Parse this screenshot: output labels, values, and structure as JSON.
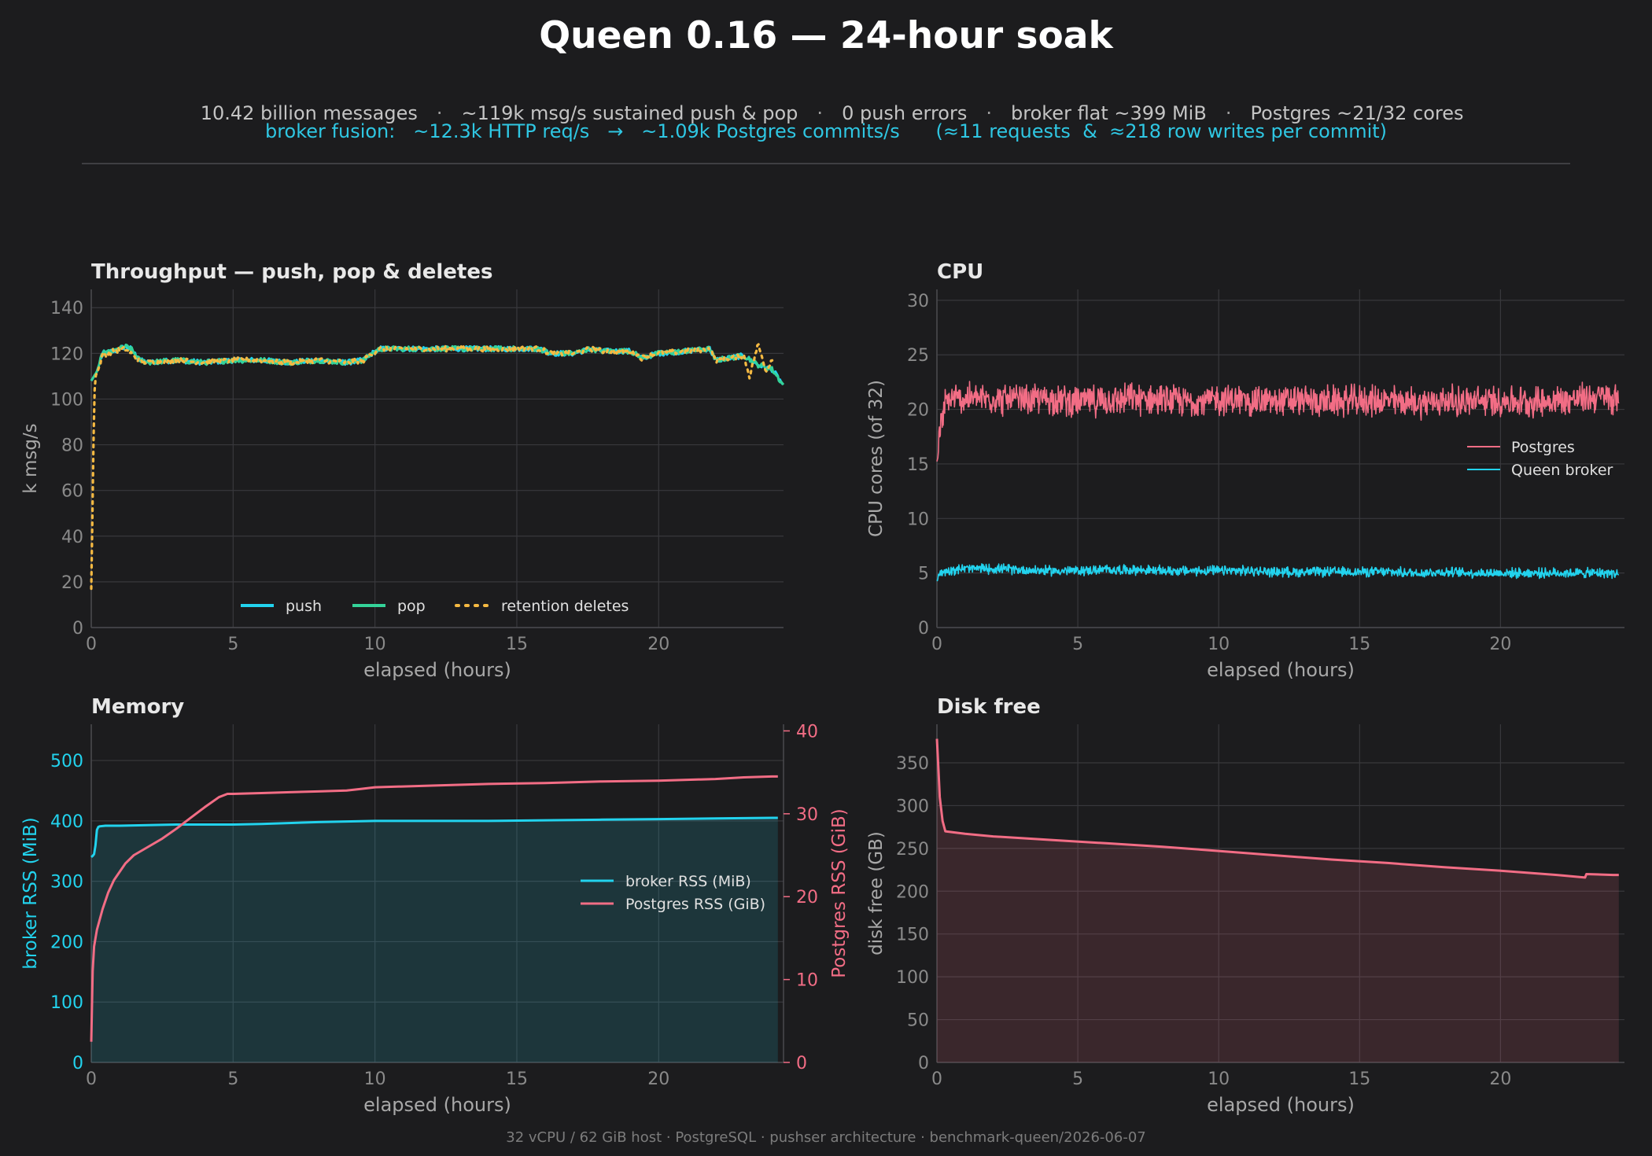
{
  "title": "Queen 0.16 — 24-hour soak",
  "stats": [
    "10.42 billion messages",
    "~119k msg/s sustained push & pop",
    "0 push errors",
    "broker flat ~399 MiB",
    "Postgres ~21/32 cores"
  ],
  "stats_separator": "·",
  "fusion": {
    "label": "broker fusion:",
    "http": "~12.3k HTTP req/s",
    "arrow": "→",
    "commits": "~1.09k Postgres commits/s",
    "ratio": "(≈11 requests  &  ≈218 row writes per commit)"
  },
  "footer": "32 vCPU / 62 GiB host · PostgreSQL · pushser architecture · benchmark-queen/2026-06-07",
  "colors": {
    "background": "#1c1c1e",
    "cyan": "#22d3ee",
    "green": "#34d399",
    "amber": "#f5b942",
    "pink": "#f26d85",
    "grid": "#38383c",
    "tick": "#8a8a8a",
    "axis_label": "#a8a8a8"
  },
  "chart_data": [
    {
      "id": "throughput",
      "type": "line",
      "title": "Throughput — push, pop & deletes",
      "xlabel": "elapsed (hours)",
      "ylabel": "k msg/s",
      "xlim": [
        0,
        24.4
      ],
      "ylim": [
        0,
        148
      ],
      "xticks": [
        0,
        5,
        10,
        15,
        20
      ],
      "yticks": [
        0,
        20,
        40,
        60,
        80,
        100,
        120,
        140
      ],
      "grid": true,
      "legend": {
        "placement": "bottom-center",
        "entries": [
          "push",
          "pop",
          "retention deletes"
        ]
      },
      "series": [
        {
          "name": "push",
          "color": "#22d3ee",
          "style": "solid",
          "x": [
            0,
            0.2,
            0.4,
            0.8,
            1.2,
            1.4,
            1.7,
            2.0,
            3.0,
            4.0,
            5.0,
            6.0,
            7.0,
            8.0,
            9.0,
            9.6,
            9.9,
            10.2,
            11.0,
            12.0,
            13.0,
            14.0,
            15.0,
            15.8,
            16.2,
            17.0,
            17.6,
            18.0,
            19.0,
            19.4,
            20.0,
            21.0,
            21.8,
            22.0,
            23.0,
            23.5,
            24.0,
            24.4
          ],
          "y": [
            108,
            112,
            120,
            121,
            123,
            122,
            117,
            116,
            117,
            116,
            117,
            117,
            116,
            117,
            116,
            117,
            120,
            122,
            122,
            122,
            122,
            122,
            122,
            122,
            120,
            120,
            122,
            121,
            121,
            118,
            120,
            121,
            122,
            117,
            119,
            115,
            113,
            106
          ]
        },
        {
          "name": "pop",
          "color": "#34d399",
          "style": "solid",
          "x": [
            0,
            0.2,
            0.4,
            0.8,
            1.2,
            1.4,
            1.7,
            2.0,
            3.0,
            4.0,
            5.0,
            6.0,
            7.0,
            8.0,
            9.0,
            9.6,
            9.9,
            10.2,
            11.0,
            12.0,
            13.0,
            14.0,
            15.0,
            15.8,
            16.2,
            17.0,
            17.6,
            18.0,
            19.0,
            19.4,
            20.0,
            21.0,
            21.8,
            22.0,
            23.0,
            23.5,
            24.0,
            24.4
          ],
          "y": [
            108,
            112,
            120,
            121,
            123,
            122,
            117,
            116,
            117,
            116,
            117,
            117,
            116,
            117,
            116,
            117,
            120,
            122,
            122,
            122,
            122,
            122,
            122,
            122,
            120,
            120,
            122,
            121,
            121,
            118,
            120,
            121,
            122,
            117,
            119,
            115,
            113,
            106
          ]
        },
        {
          "name": "retention deletes",
          "color": "#f5b942",
          "style": "dotted",
          "x": [
            0,
            0.05,
            0.1,
            0.15,
            0.25,
            0.4,
            0.8,
            1.2,
            1.7,
            2.0,
            3.0,
            4.0,
            5.0,
            6.0,
            7.0,
            8.0,
            9.0,
            9.6,
            9.9,
            10.2,
            11.0,
            12.0,
            13.0,
            14.0,
            15.0,
            15.8,
            16.2,
            17.0,
            17.6,
            18.0,
            19.0,
            19.4,
            20.0,
            21.0,
            21.8,
            22.0,
            23.0,
            23.2,
            23.5,
            23.8,
            24.0
          ],
          "y": [
            17,
            55,
            100,
            110,
            113,
            119,
            121,
            122,
            117,
            116,
            117,
            116,
            117,
            117,
            116,
            117,
            116,
            117,
            120,
            122,
            122,
            122,
            122,
            122,
            122,
            122,
            120,
            120,
            122,
            121,
            121,
            118,
            120,
            121,
            122,
            117,
            119,
            110,
            124,
            112,
            118
          ]
        }
      ]
    },
    {
      "id": "cpu",
      "type": "line",
      "title": "CPU",
      "xlabel": "elapsed (hours)",
      "ylabel": "CPU cores (of 32)",
      "xlim": [
        0,
        24.4
      ],
      "ylim": [
        0,
        31
      ],
      "xticks": [
        0,
        5,
        10,
        15,
        20
      ],
      "yticks": [
        0,
        5,
        10,
        15,
        20,
        25,
        30
      ],
      "grid": true,
      "legend": {
        "placement": "right",
        "entries": [
          "Postgres",
          "Queen broker"
        ]
      },
      "series": [
        {
          "name": "Postgres",
          "color": "#f26d85",
          "style": "solid",
          "x": [
            0,
            0.1,
            0.3,
            0.6,
            1,
            2,
            3,
            4,
            5,
            6,
            7,
            8,
            9,
            10,
            11,
            12,
            13,
            14,
            15,
            16,
            17,
            18,
            19,
            20,
            21,
            22,
            23,
            23.5,
            24.0,
            24.2
          ],
          "y": [
            15,
            18,
            20.5,
            21,
            21,
            21,
            20.8,
            21,
            20.7,
            20.8,
            21,
            20.8,
            20.7,
            20.9,
            20.8,
            20.7,
            20.8,
            20.7,
            20.8,
            20.8,
            20.6,
            20.8,
            20.7,
            20.8,
            20.7,
            20.8,
            21,
            21.2,
            21,
            20.5
          ],
          "noise_amplitude": 1.4
        },
        {
          "name": "Queen broker",
          "color": "#22d3ee",
          "style": "solid",
          "x": [
            0,
            0.1,
            0.5,
            1,
            2,
            3,
            4,
            5,
            6,
            7,
            8,
            9,
            10,
            11,
            12,
            13,
            14,
            15,
            16,
            17,
            18,
            19,
            20,
            21,
            22,
            23,
            24,
            24.2
          ],
          "y": [
            4.6,
            5.0,
            5.3,
            5.4,
            5.4,
            5.3,
            5.2,
            5.2,
            5.3,
            5.3,
            5.2,
            5.2,
            5.2,
            5.2,
            5.1,
            5.1,
            5.1,
            5.1,
            5.1,
            5.0,
            5.1,
            5.0,
            5.0,
            5.0,
            5.0,
            5.0,
            5.0,
            4.9
          ],
          "noise_amplitude": 0.45
        }
      ]
    },
    {
      "id": "memory",
      "type": "area",
      "title": "Memory",
      "xlabel": "elapsed (hours)",
      "ylabel": "broker RSS (MiB)",
      "ylabel_right": "Postgres RSS (GiB)",
      "xlim": [
        0,
        24.4
      ],
      "ylim": [
        0,
        560
      ],
      "ylim_right": [
        0,
        40.8
      ],
      "xticks": [
        0,
        5,
        10,
        15,
        20
      ],
      "yticks": [
        0,
        100,
        200,
        300,
        400,
        500
      ],
      "yticks_right": [
        0,
        10,
        20,
        30,
        40
      ],
      "grid": true,
      "legend": {
        "placement": "right",
        "entries": [
          "broker RSS (MiB)",
          "Postgres RSS (GiB)"
        ]
      },
      "series": [
        {
          "name": "broker RSS (MiB)",
          "color": "#22d3ee",
          "axis": "left",
          "x": [
            0,
            0.05,
            0.1,
            0.15,
            0.2,
            0.25,
            0.3,
            0.5,
            1,
            2,
            3,
            4,
            5,
            6,
            8,
            10,
            12,
            14,
            16,
            18,
            20,
            22,
            24,
            24.2
          ],
          "y": [
            340,
            342,
            345,
            360,
            385,
            390,
            391,
            392,
            392,
            393,
            394,
            394,
            394,
            395,
            398,
            400,
            400,
            400,
            401,
            402,
            403,
            404,
            405,
            405
          ]
        },
        {
          "name": "Postgres RSS (GiB)",
          "color": "#f26d85",
          "axis": "right",
          "x": [
            0,
            0.05,
            0.1,
            0.2,
            0.4,
            0.6,
            0.8,
            1.0,
            1.2,
            1.5,
            2,
            2.5,
            3,
            3.5,
            4,
            4.5,
            4.8,
            5,
            6,
            7,
            8,
            9,
            9.5,
            10,
            12,
            14,
            16,
            18,
            20,
            22,
            23,
            24,
            24.2
          ],
          "y": [
            2.5,
            11,
            14,
            16,
            18.5,
            20.5,
            22,
            23,
            24,
            25,
            26,
            27,
            28.2,
            29.5,
            30.8,
            32,
            32.4,
            32.4,
            32.5,
            32.6,
            32.7,
            32.8,
            33.0,
            33.2,
            33.4,
            33.6,
            33.7,
            33.9,
            34.0,
            34.2,
            34.4,
            34.5,
            34.5
          ]
        }
      ]
    },
    {
      "id": "disk",
      "type": "area",
      "title": "Disk free",
      "xlabel": "elapsed (hours)",
      "ylabel": "disk free (GB)",
      "xlim": [
        0,
        24.4
      ],
      "ylim": [
        0,
        395
      ],
      "xticks": [
        0,
        5,
        10,
        15,
        20
      ],
      "yticks": [
        0,
        50,
        100,
        150,
        200,
        250,
        300,
        350
      ],
      "grid": true,
      "series": [
        {
          "name": "",
          "color": "#f26d85",
          "x": [
            0,
            0.05,
            0.1,
            0.2,
            0.3,
            1,
            2,
            4,
            6,
            8,
            10,
            12,
            14,
            16,
            18,
            20,
            22,
            23.0,
            23.05,
            24.0,
            24.2
          ],
          "y": [
            378,
            345,
            310,
            282,
            270,
            267,
            264,
            260,
            256,
            252,
            247,
            242,
            237,
            233,
            228,
            224,
            219,
            216,
            220,
            219,
            219
          ]
        }
      ]
    }
  ]
}
